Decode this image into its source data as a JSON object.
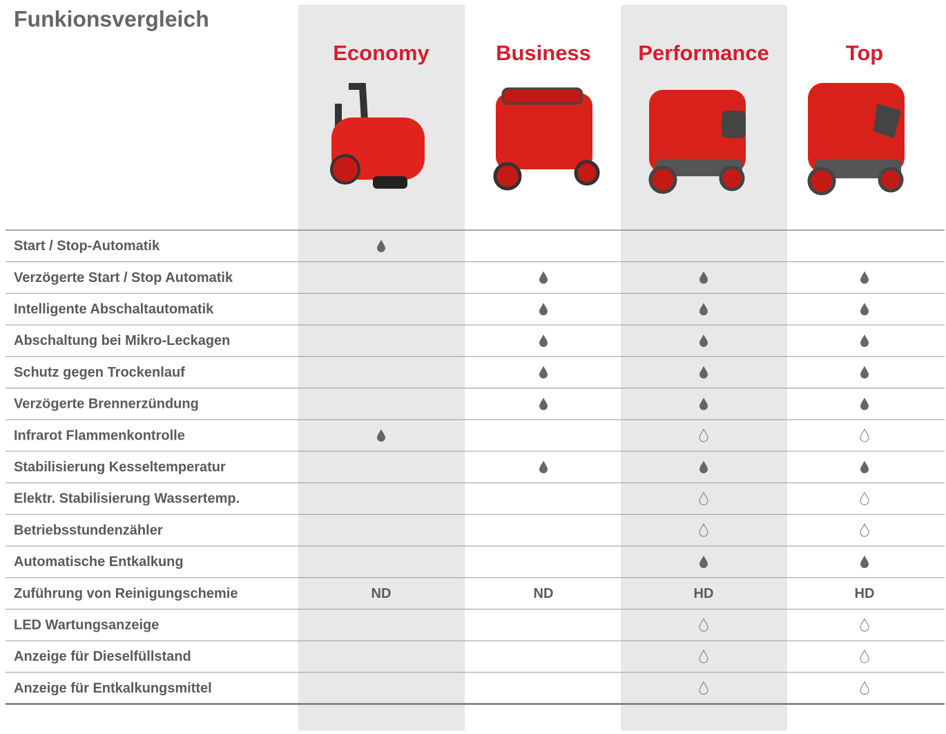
{
  "title": "Funkionsvergleich",
  "columns": [
    "Economy",
    "Business",
    "Performance",
    "Top"
  ],
  "rows": [
    {
      "label": "Start / Stop-Automatik",
      "cells": [
        {
          "icon": "filled"
        },
        null,
        null,
        null
      ]
    },
    {
      "label": "Verzögerte Start / Stop Automatik",
      "cells": [
        null,
        {
          "icon": "filled"
        },
        {
          "icon": "filled"
        },
        {
          "icon": "filled"
        }
      ]
    },
    {
      "label": "Intelligente Abschaltautomatik",
      "cells": [
        null,
        {
          "icon": "filled"
        },
        {
          "icon": "filled"
        },
        {
          "icon": "filled"
        }
      ]
    },
    {
      "label": "Abschaltung bei Mikro-Leckagen",
      "cells": [
        null,
        {
          "icon": "filled"
        },
        {
          "icon": "filled"
        },
        {
          "icon": "filled"
        }
      ]
    },
    {
      "label": "Schutz gegen Trockenlauf",
      "cells": [
        null,
        {
          "icon": "filled"
        },
        {
          "icon": "filled"
        },
        {
          "icon": "filled"
        }
      ]
    },
    {
      "label": "Verzögerte Brennerzündung",
      "cells": [
        null,
        {
          "icon": "filled"
        },
        {
          "icon": "filled"
        },
        {
          "icon": "filled"
        }
      ]
    },
    {
      "label": "Infrarot Flammenkontrolle",
      "cells": [
        {
          "icon": "filled"
        },
        null,
        {
          "icon": "outline"
        },
        {
          "icon": "outline"
        }
      ]
    },
    {
      "label": "Stabilisierung Kesseltemperatur",
      "cells": [
        null,
        {
          "icon": "filled"
        },
        {
          "icon": "filled"
        },
        {
          "icon": "filled"
        }
      ]
    },
    {
      "label": "Elektr. Stabilisierung Wassertemp.",
      "cells": [
        null,
        null,
        {
          "icon": "outline"
        },
        {
          "icon": "outline"
        }
      ]
    },
    {
      "label": "Betriebsstundenzähler",
      "cells": [
        null,
        null,
        {
          "icon": "outline"
        },
        {
          "icon": "outline"
        }
      ]
    },
    {
      "label": "Automatische Entkalkung",
      "cells": [
        null,
        null,
        {
          "icon": "filled"
        },
        {
          "icon": "filled"
        }
      ]
    },
    {
      "label": "Zuführung von Reinigungschemie",
      "cells": [
        "ND",
        "ND",
        "HD",
        "HD"
      ]
    },
    {
      "label": "LED Wartungsanzeige",
      "cells": [
        null,
        null,
        {
          "icon": "outline"
        },
        {
          "icon": "outline"
        }
      ]
    },
    {
      "label": "Anzeige für Dieselfüllstand",
      "cells": [
        null,
        null,
        {
          "icon": "outline"
        },
        {
          "icon": "outline"
        }
      ]
    },
    {
      "label": "Anzeige für Entkalkungsmittel",
      "cells": [
        null,
        null,
        {
          "icon": "outline"
        },
        {
          "icon": "outline"
        }
      ]
    }
  ]
}
